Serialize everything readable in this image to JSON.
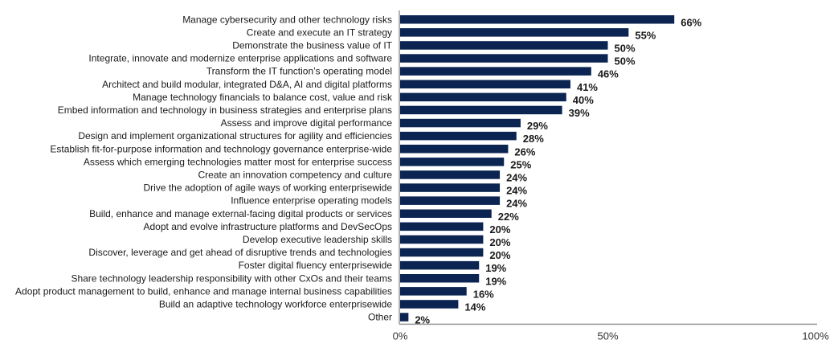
{
  "chart_data": {
    "type": "bar",
    "orientation": "horizontal",
    "title": "",
    "xlabel": "",
    "ylabel": "",
    "xlim": [
      0,
      100
    ],
    "unit": "%",
    "grid": false,
    "legend": "none",
    "bar_color": "#0b2452",
    "x_ticks": [
      "0%",
      "50%",
      "100%"
    ],
    "x_tick_values": [
      0,
      50,
      100
    ],
    "categories": [
      "Manage cybersecurity and other technology risks",
      "Create and execute an IT strategy",
      "Demonstrate the business value of IT",
      "Integrate, innovate and modernize enterprise applications and software",
      "Transform the IT function’s operating model",
      "Architect and build modular, integrated D&A, AI and digital platforms",
      "Manage technology financials to balance cost, value and risk",
      "Embed information and technology in business strategies and enterprise plans",
      "Assess and improve digital performance",
      "Design and implement organizational structures for agility and efficiencies",
      "Establish fit-for-purpose information and technology governance enterprise-wide",
      "Assess which emerging technologies matter most for enterprise success",
      "Create an innovation competency and culture",
      "Drive the adoption of agile ways of working enterprisewide",
      "Influence enterprise operating models",
      "Build, enhance and manage external-facing digital products or services",
      "Adopt and evolve infrastructure platforms and DevSecOps",
      "Develop executive leadership skills",
      "Discover, leverage and get ahead of disruptive trends and technologies",
      "Foster digital fluency enterprisewide",
      "Share technology leadership responsibility with other CxOs and their teams",
      "Adopt product management to build, enhance and manage internal business capabilities",
      "Build an adaptive technology workforce enterprisewide",
      "Other"
    ],
    "values": [
      66,
      55,
      50,
      50,
      46,
      41,
      40,
      39,
      29,
      28,
      26,
      25,
      24,
      24,
      24,
      22,
      20,
      20,
      20,
      19,
      19,
      16,
      14,
      2
    ],
    "value_labels": [
      "66%",
      "55%",
      "50%",
      "50%",
      "46%",
      "41%",
      "40%",
      "39%",
      "29%",
      "28%",
      "26%",
      "25%",
      "24%",
      "24%",
      "24%",
      "22%",
      "20%",
      "20%",
      "20%",
      "19%",
      "19%",
      "16%",
      "14%",
      "2%"
    ]
  }
}
